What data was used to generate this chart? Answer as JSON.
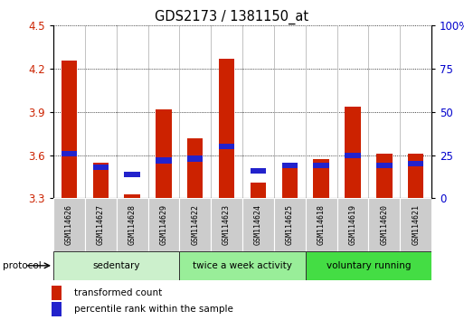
{
  "title": "GDS2173 / 1381150_at",
  "samples": [
    "GSM114626",
    "GSM114627",
    "GSM114628",
    "GSM114629",
    "GSM114622",
    "GSM114623",
    "GSM114624",
    "GSM114625",
    "GSM114618",
    "GSM114619",
    "GSM114620",
    "GSM114621"
  ],
  "red_values": [
    4.26,
    3.55,
    3.33,
    3.92,
    3.72,
    4.27,
    3.41,
    3.54,
    3.57,
    3.94,
    3.61,
    3.61
  ],
  "blue_percentiles": [
    26,
    18,
    14,
    22,
    23,
    30,
    16,
    19,
    19,
    25,
    19,
    20
  ],
  "ymin": 3.3,
  "ymax": 4.5,
  "yticks": [
    3.3,
    3.6,
    3.9,
    4.2,
    4.5
  ],
  "right_ytick_vals": [
    0,
    25,
    50,
    75,
    100
  ],
  "right_ytick_labels": [
    "0",
    "25",
    "50",
    "75",
    "100%"
  ],
  "groups": [
    {
      "label": "sedentary",
      "start": 0,
      "end": 4,
      "color": "#ccf0cc"
    },
    {
      "label": "twice a week activity",
      "start": 4,
      "end": 8,
      "color": "#99ee99"
    },
    {
      "label": "voluntary running",
      "start": 8,
      "end": 12,
      "color": "#44dd44"
    }
  ],
  "bar_width": 0.5,
  "red_color": "#cc2200",
  "blue_color": "#2222cc",
  "bg_color": "#ffffff",
  "ylabel_color_left": "#cc2200",
  "ylabel_color_right": "#0000cc",
  "legend_red": "transformed count",
  "legend_blue": "percentile rank within the sample"
}
